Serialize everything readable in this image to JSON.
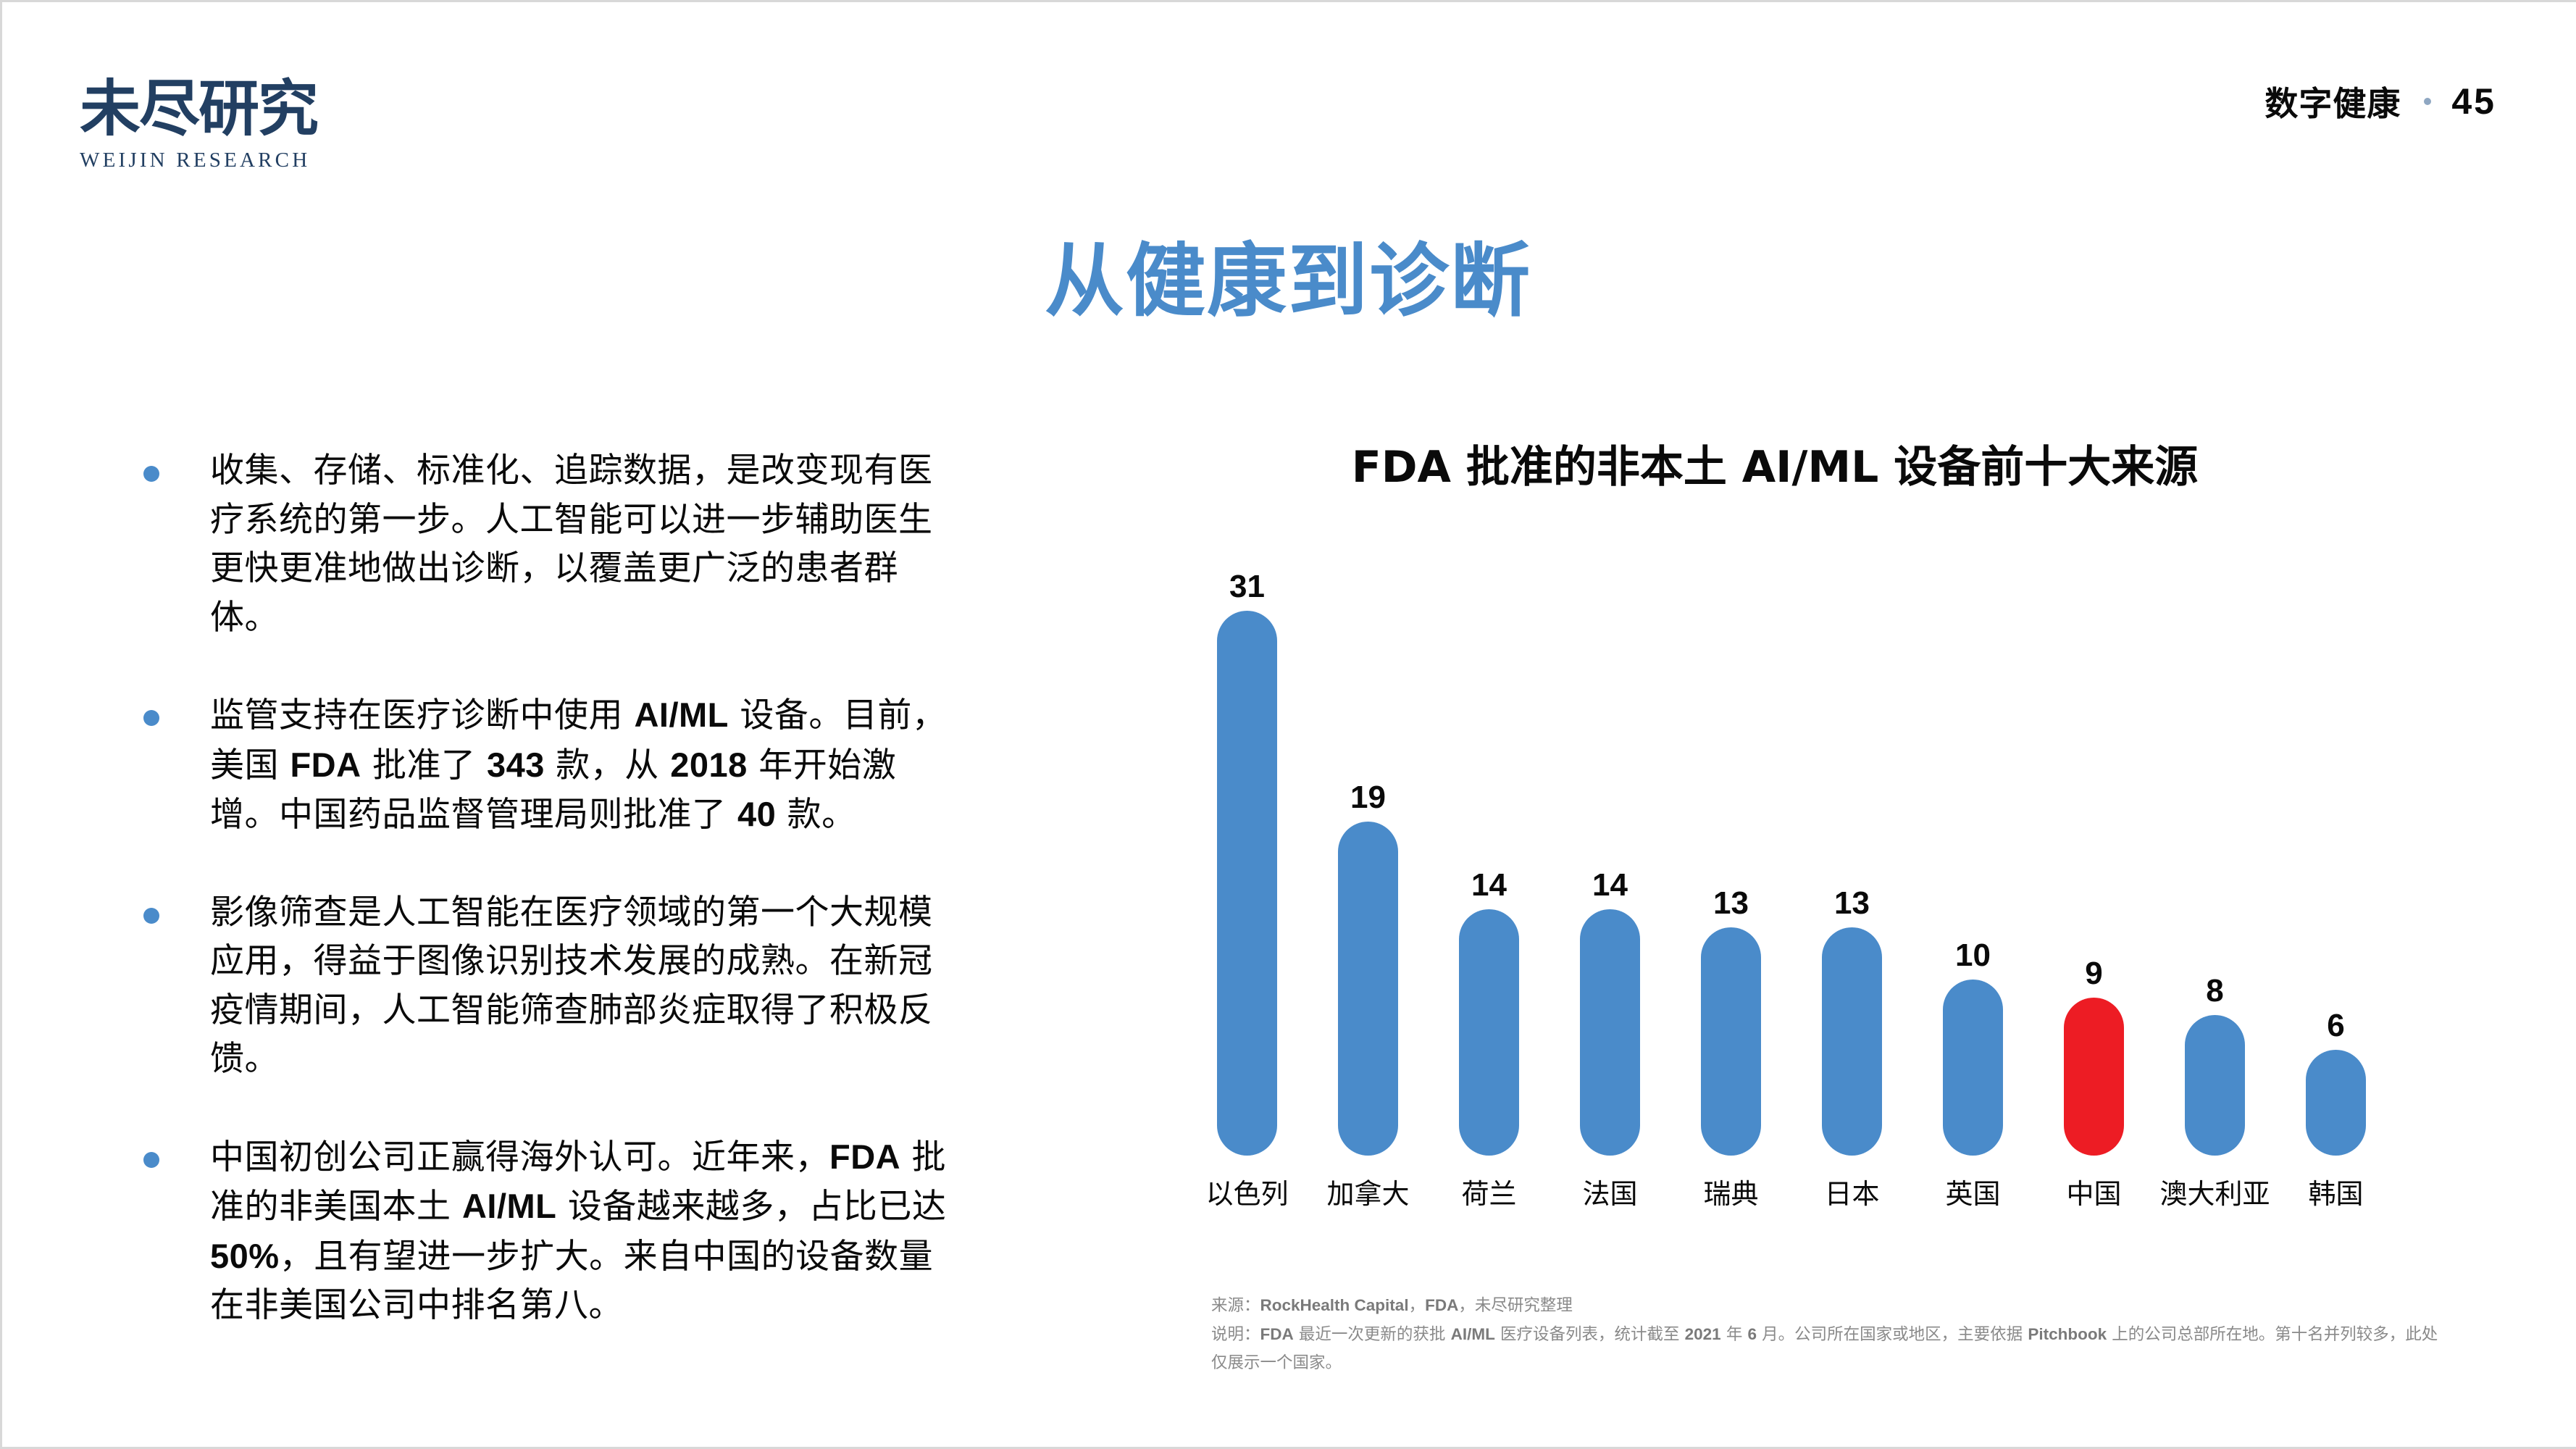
{
  "logo": {
    "cn": "未尽研究",
    "en": "WEIJIN RESEARCH"
  },
  "header": {
    "section": "数字健康",
    "page_number": "45"
  },
  "title": "从健康到诊断",
  "bullets": [
    {
      "segments": [
        {
          "t": "收集、存储、标准化、追踪数据，是改变现有医疗系统的第一步。人工智能可以进一步辅助医生更快更准地做出诊断，以覆盖更广泛的患者群体。",
          "b": false
        }
      ]
    },
    {
      "segments": [
        {
          "t": "监管支持在医疗诊断中使用 ",
          "b": false
        },
        {
          "t": "AI/ML",
          "b": true
        },
        {
          "t": " 设备。目前，美国 ",
          "b": false
        },
        {
          "t": "FDA",
          "b": true
        },
        {
          "t": " 批准了 ",
          "b": false
        },
        {
          "t": "343",
          "b": true
        },
        {
          "t": " 款，从 ",
          "b": false
        },
        {
          "t": "2018",
          "b": true
        },
        {
          "t": " 年开始激增。中国药品监督管理局则批准了 ",
          "b": false
        },
        {
          "t": "40",
          "b": true
        },
        {
          "t": " 款。",
          "b": false
        }
      ]
    },
    {
      "segments": [
        {
          "t": "影像筛查是人工智能在医疗领域的第一个大规模应用，得益于图像识别技术发展的成熟。在新冠疫情期间，人工智能筛查肺部炎症取得了积极反馈。",
          "b": false
        }
      ]
    },
    {
      "segments": [
        {
          "t": "中国初创公司正赢得海外认可。近年来，",
          "b": false
        },
        {
          "t": "FDA",
          "b": true
        },
        {
          "t": " 批准的非美国本土 ",
          "b": false
        },
        {
          "t": "AI/ML",
          "b": true
        },
        {
          "t": " 设备越来越多，占比已达 ",
          "b": false
        },
        {
          "t": "50%",
          "b": true
        },
        {
          "t": "，且有望进一步扩大。来自中国的设备数量在非美国公司中排名第八。",
          "b": false
        }
      ]
    }
  ],
  "chart_data": {
    "type": "bar",
    "title": "FDA 批准的非本土 AI/ML 设备前十大来源",
    "xlabel": "",
    "ylabel": "",
    "categories": [
      "以色列",
      "加拿大",
      "荷兰",
      "法国",
      "瑞典",
      "日本",
      "英国",
      "中国",
      "澳大利亚",
      "韩国"
    ],
    "values": [
      31,
      19,
      14,
      14,
      13,
      13,
      10,
      9,
      8,
      6
    ],
    "highlight": {
      "category": "中国",
      "color": "#ed1c24"
    },
    "bar_color": "#4a8bca",
    "ylim": [
      0,
      31
    ],
    "grid": false,
    "legend": "none",
    "data_labels": true
  },
  "footnote": {
    "source_label": "来源：",
    "source_segments": [
      {
        "t": "RockHealth Capital",
        "b": true
      },
      {
        "t": "，",
        "b": false
      },
      {
        "t": "FDA",
        "b": true
      },
      {
        "t": "，未尽研究整理",
        "b": false
      }
    ],
    "note_label": "说明：",
    "note_segments": [
      {
        "t": "FDA",
        "b": true
      },
      {
        "t": " 最近一次更新的获批 ",
        "b": false
      },
      {
        "t": "AI/ML",
        "b": true
      },
      {
        "t": " 医疗设备列表，统计截至 ",
        "b": false
      },
      {
        "t": "2021",
        "b": true
      },
      {
        "t": " 年 ",
        "b": false
      },
      {
        "t": "6",
        "b": true
      },
      {
        "t": " 月。公司所在国家或地区，主要依据 ",
        "b": false
      },
      {
        "t": "Pitchbook",
        "b": true
      },
      {
        "t": " 上的公司总部所在地。第十名并列较多，此处仅展示一个国家。",
        "b": false
      }
    ]
  }
}
